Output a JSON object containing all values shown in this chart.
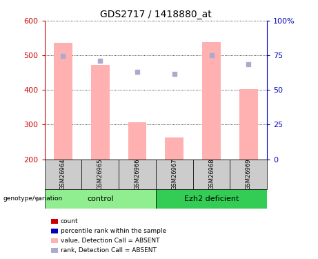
{
  "title": "GDS2717 / 1418880_at",
  "samples": [
    "GSM26964",
    "GSM26965",
    "GSM26966",
    "GSM26967",
    "GSM26968",
    "GSM26969"
  ],
  "bar_values": [
    537,
    472,
    307,
    264,
    538,
    402
  ],
  "bar_bottom": 200,
  "dot_values": [
    499,
    484,
    452,
    447,
    500,
    475
  ],
  "ylim_left": [
    200,
    600
  ],
  "ylim_right": [
    0,
    100
  ],
  "yticks_left": [
    200,
    300,
    400,
    500,
    600
  ],
  "yticks_right": [
    0,
    25,
    50,
    75,
    100
  ],
  "bar_color": "#FFB0B0",
  "dot_color": "#AAAACC",
  "left_axis_color": "#CC0000",
  "right_axis_color": "#0000BB",
  "control_bg": "#90EE90",
  "deficient_bg": "#33CC55",
  "sample_box_color": "#CCCCCC",
  "legend_items": [
    {
      "label": "count",
      "color": "#CC0000"
    },
    {
      "label": "percentile rank within the sample",
      "color": "#0000BB"
    },
    {
      "label": "value, Detection Call = ABSENT",
      "color": "#FFB0B0"
    },
    {
      "label": "rank, Detection Call = ABSENT",
      "color": "#AAAACC"
    }
  ]
}
